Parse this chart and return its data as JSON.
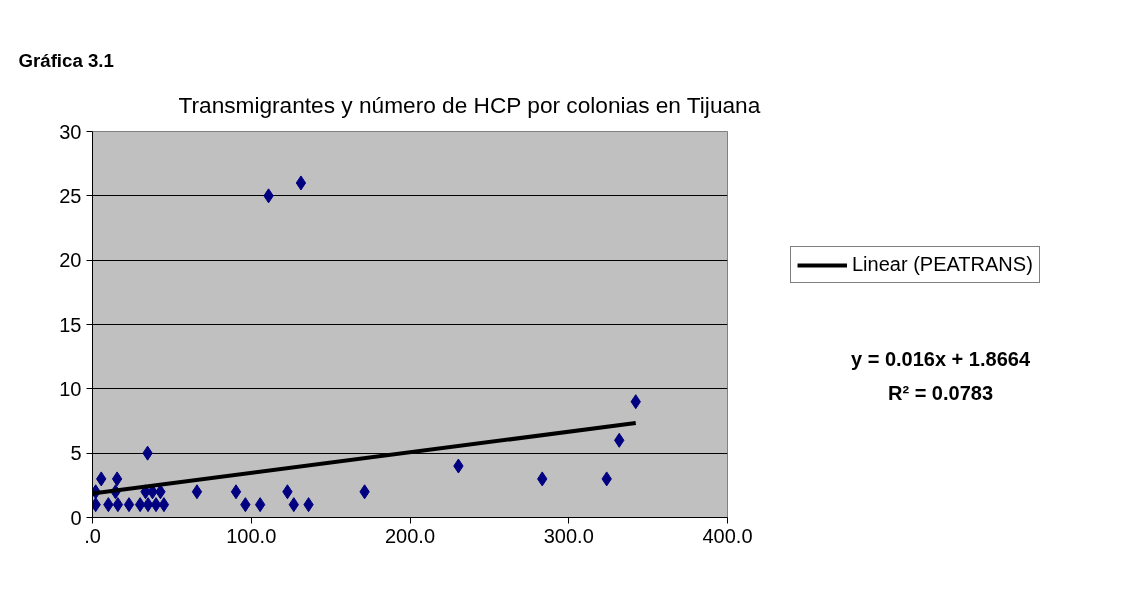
{
  "chart_data": {
    "type": "scatter",
    "title": "Gráfica 3.1",
    "subtitle": "Transmigrantes y número de HCP por colonias en Tijuana",
    "series": [
      {
        "color": "#000080",
        "marker": "diamond",
        "x": [
          110.9,
          131.3,
          34.7,
          5.5,
          15.5,
          2,
          14.5,
          33.4,
          37.8,
          42.8,
          65.8,
          90.4,
          122.8,
          171.4,
          230.5,
          283.3,
          323.9,
          331.8,
          342.2,
          2,
          10,
          16,
          23,
          30,
          35,
          40,
          45,
          96.3,
          105.6,
          126.8,
          136.1
        ],
        "values": [
          25,
          26,
          5,
          3,
          3,
          2,
          2,
          2,
          2,
          2,
          2,
          2,
          2,
          2,
          4,
          3,
          3,
          6,
          9,
          1,
          1,
          1,
          1,
          1,
          1,
          1,
          1,
          1,
          1,
          1,
          1
        ]
      },
      {
        "type": "line",
        "name": "Linear (PEATRANS)",
        "color": "#000000",
        "marker": "none",
        "x": [
          0,
          342.2
        ],
        "values": [
          1.87,
          7.34
        ]
      }
    ],
    "annotations": [
      "y = 0.016x + 1.8664",
      "R² = 0.0783"
    ],
    "xlim": [
      0,
      400
    ],
    "xticks": [
      {
        "value": 0,
        "label": ".0"
      },
      {
        "value": 100,
        "label": "100.0"
      },
      {
        "value": 200,
        "label": "200.0"
      },
      {
        "value": 300,
        "label": "300.0"
      },
      {
        "value": 400,
        "label": "400.0"
      }
    ],
    "ylim": [
      0,
      30
    ],
    "yticks": [
      0,
      5,
      10,
      15,
      20,
      25,
      30
    ],
    "grid": "y",
    "legend": "right"
  }
}
